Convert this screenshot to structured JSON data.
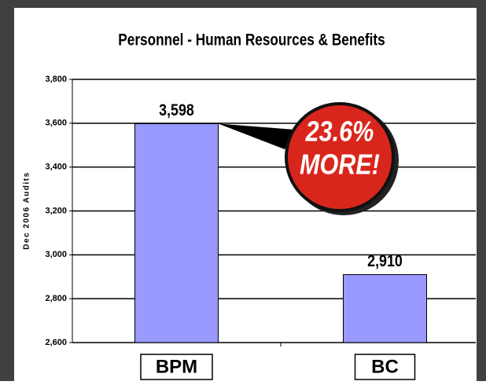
{
  "chart_data": {
    "type": "bar",
    "title": "Personnel - Human Resources & Benefits",
    "y_label": "Dec 2006 Audits",
    "categories": [
      "BPM",
      "BC"
    ],
    "values": [
      3598,
      2910
    ],
    "value_labels": [
      "3,598",
      "2,910"
    ],
    "color": "#9999ff",
    "ylim": [
      2600,
      3800
    ],
    "yticks": [
      {
        "value": 2600,
        "label": "2,600"
      },
      {
        "value": 2800,
        "label": "2,800"
      },
      {
        "value": 3000,
        "label": "3,000"
      },
      {
        "value": 3200,
        "label": "3,200"
      },
      {
        "value": 3400,
        "label": "3,400"
      },
      {
        "value": 3600,
        "label": "3,600"
      },
      {
        "value": 3800,
        "label": "3,800"
      }
    ],
    "grid": true,
    "annotation": [
      "23.6%",
      "MORE!"
    ]
  }
}
